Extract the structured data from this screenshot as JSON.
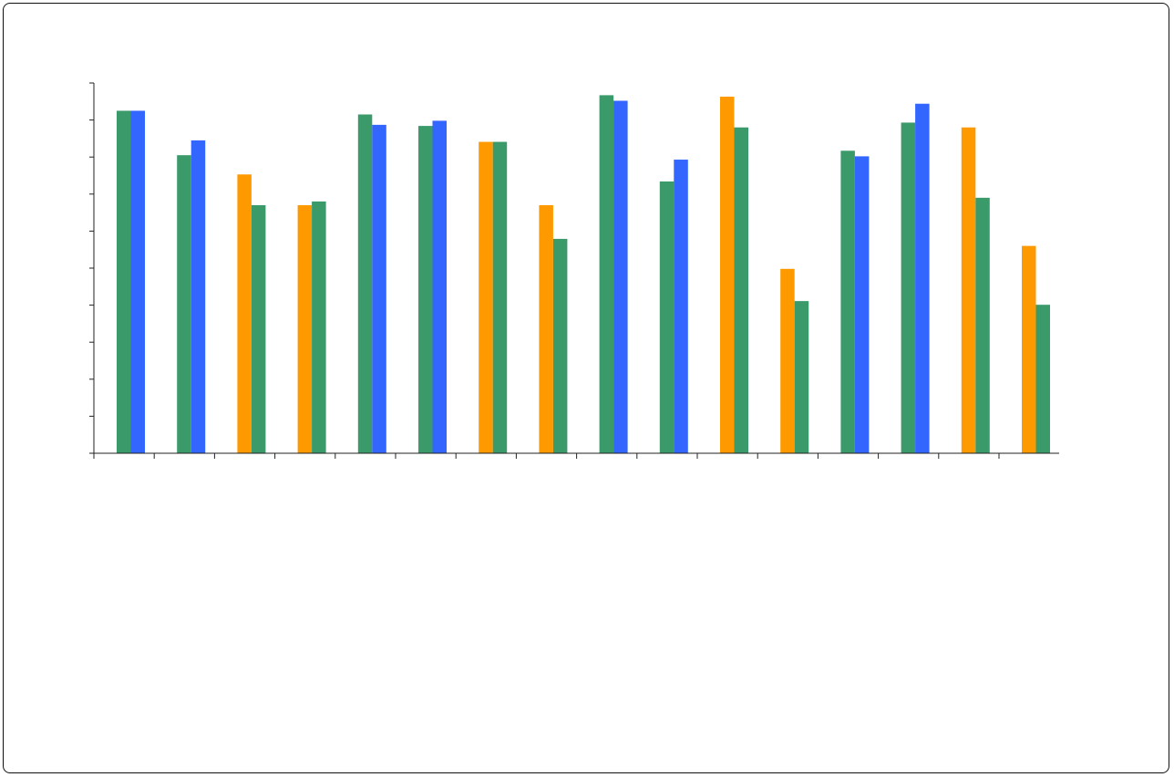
{
  "chart_data": {
    "type": "bar",
    "title": "",
    "xlabel": "",
    "ylabel": "",
    "ylim": [
      0,
      100
    ],
    "grid": false,
    "legend": "none",
    "colors": {
      "green": "#3a9a6a",
      "blue": "#3366ff",
      "orange": "#ff9900"
    },
    "groups": [
      {
        "bars": [
          {
            "series": "green",
            "value": 92.5
          },
          {
            "series": "blue",
            "value": 92.5
          }
        ]
      },
      {
        "bars": [
          {
            "series": "green",
            "value": 80.5
          },
          {
            "series": "blue",
            "value": 84.5
          }
        ]
      },
      {
        "bars": [
          {
            "series": "orange",
            "value": 75.3
          },
          {
            "series": "green",
            "value": 67.0
          }
        ]
      },
      {
        "bars": [
          {
            "series": "orange",
            "value": 67.0
          },
          {
            "series": "green",
            "value": 68.0
          }
        ]
      },
      {
        "bars": [
          {
            "series": "green",
            "value": 91.5
          },
          {
            "series": "blue",
            "value": 88.7
          }
        ]
      },
      {
        "bars": [
          {
            "series": "green",
            "value": 88.4
          },
          {
            "series": "blue",
            "value": 89.8
          }
        ]
      },
      {
        "bars": [
          {
            "series": "orange",
            "value": 84.1
          },
          {
            "series": "green",
            "value": 84.1
          }
        ]
      },
      {
        "bars": [
          {
            "series": "orange",
            "value": 67.0
          },
          {
            "series": "green",
            "value": 57.9
          }
        ]
      },
      {
        "bars": [
          {
            "series": "green",
            "value": 96.7
          },
          {
            "series": "blue",
            "value": 95.2
          }
        ]
      },
      {
        "bars": [
          {
            "series": "green",
            "value": 73.4
          },
          {
            "series": "blue",
            "value": 79.3
          }
        ]
      },
      {
        "bars": [
          {
            "series": "orange",
            "value": 96.3
          },
          {
            "series": "green",
            "value": 88.0
          }
        ]
      },
      {
        "bars": [
          {
            "series": "orange",
            "value": 49.8
          },
          {
            "series": "green",
            "value": 41.1
          }
        ]
      },
      {
        "bars": [
          {
            "series": "green",
            "value": 81.7
          },
          {
            "series": "blue",
            "value": 80.2
          }
        ]
      },
      {
        "bars": [
          {
            "series": "green",
            "value": 89.3
          },
          {
            "series": "blue",
            "value": 94.4
          }
        ]
      },
      {
        "bars": [
          {
            "series": "orange",
            "value": 88.0
          },
          {
            "series": "green",
            "value": 69.0
          }
        ]
      },
      {
        "bars": [
          {
            "series": "orange",
            "value": 56.0
          },
          {
            "series": "green",
            "value": 40.1
          }
        ]
      }
    ]
  }
}
